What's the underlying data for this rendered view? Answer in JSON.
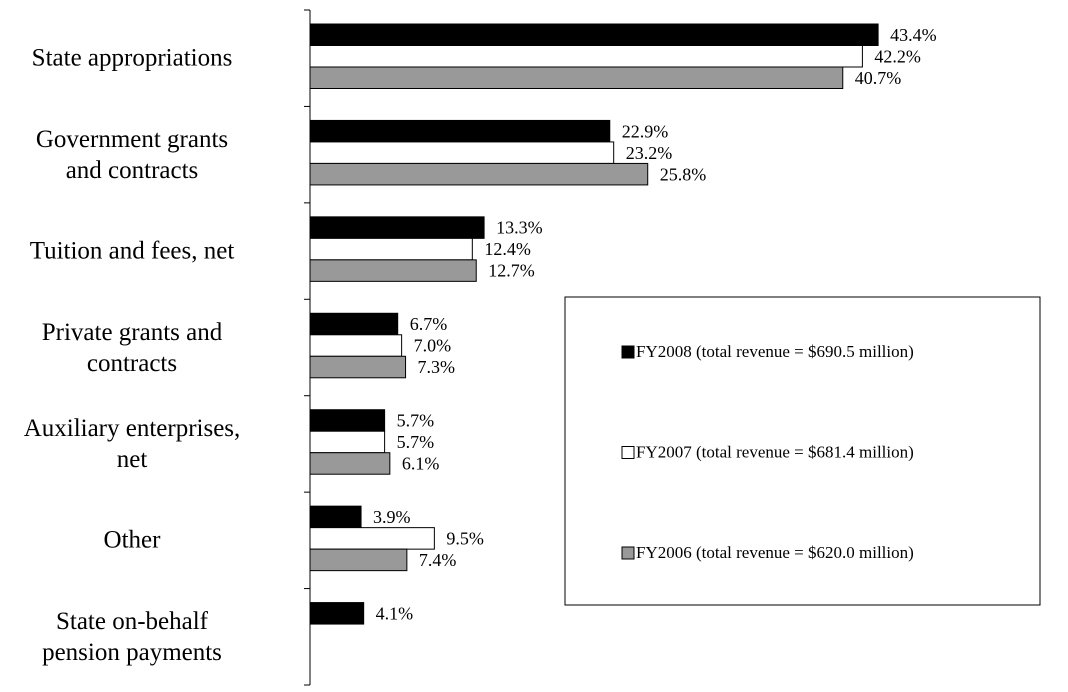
{
  "chart_data": {
    "type": "bar",
    "orientation": "horizontal",
    "categories": [
      "State appropriations",
      "Government grants\nand contracts",
      "Tuition and fees, net",
      "Private grants and\ncontracts",
      "Auxiliary enterprises,\nnet",
      "Other",
      "State on-behalf\npension payments"
    ],
    "series": [
      {
        "name": "FY2008 (total revenue = $690.5 million)",
        "color": "#000000",
        "values": [
          43.4,
          22.9,
          13.3,
          6.7,
          5.7,
          3.9,
          4.1
        ],
        "value_labels": [
          "43.4%",
          "22.9%",
          "13.3%",
          "6.7%",
          "5.7%",
          "3.9%",
          "4.1%"
        ]
      },
      {
        "name": "FY2007 (total revenue = $681.4 million)",
        "color": "#ffffff",
        "values": [
          42.2,
          23.2,
          12.4,
          7.0,
          5.7,
          9.5,
          null
        ],
        "value_labels": [
          "42.2%",
          "23.2%",
          "12.4%",
          "7.0%",
          "5.7%",
          "9.5%",
          null
        ]
      },
      {
        "name": "FY2006 (total revenue = $620.0 million)",
        "color": "#999999",
        "values": [
          40.7,
          25.8,
          12.7,
          7.3,
          6.1,
          7.4,
          null
        ],
        "value_labels": [
          "40.7%",
          "25.8%",
          "12.7%",
          "7.3%",
          "6.1%",
          "7.4%",
          null
        ]
      }
    ],
    "legend": "right"
  }
}
